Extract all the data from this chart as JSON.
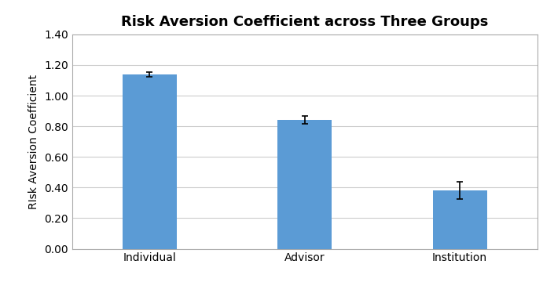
{
  "title": "Risk Aversion Coefficient across Three Groups",
  "ylabel": "RIsk Aversion Coefficient",
  "categories": [
    "Individual",
    "Advisor",
    "Institution"
  ],
  "values": [
    1.14,
    0.84,
    0.38
  ],
  "errors": [
    0.015,
    0.025,
    0.055
  ],
  "bar_color": "#5B9BD5",
  "bar_width": 0.35,
  "ylim": [
    0.0,
    1.4
  ],
  "yticks": [
    0.0,
    0.2,
    0.4,
    0.6,
    0.8,
    1.0,
    1.2,
    1.4
  ],
  "title_fontsize": 13,
  "label_fontsize": 10,
  "tick_fontsize": 10,
  "background_color": "#ffffff",
  "plot_bg_color": "#ffffff",
  "grid_color": "#cccccc",
  "spine_color": "#aaaaaa"
}
